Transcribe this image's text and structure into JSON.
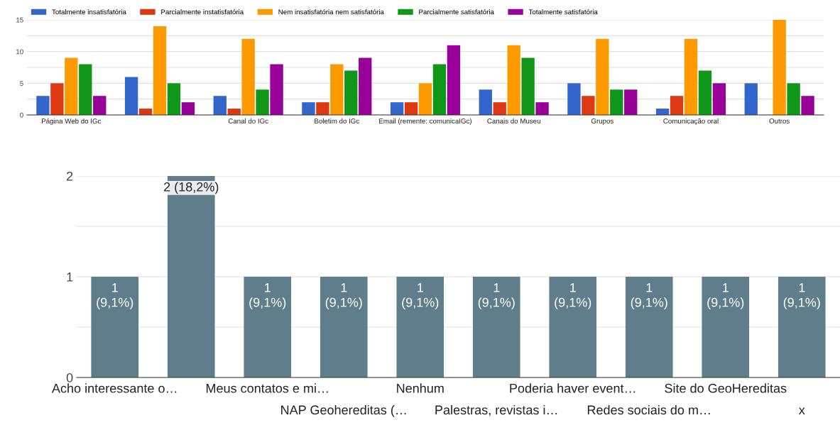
{
  "chart_data": [
    {
      "type": "bar",
      "categories": [
        "Página Web do IGc",
        null,
        "Canal do IGc",
        "Boletim do IGc",
        "Email (remente: comunicaIGc)",
        "Canais do Museu",
        "Grupos",
        "Comunicação oral",
        "Outros"
      ],
      "series": [
        {
          "name": "Totalmente insatisfatória",
          "color": "#3366cc",
          "values": [
            3,
            6,
            3,
            2,
            2,
            4,
            5,
            1,
            5
          ]
        },
        {
          "name": "Parcialmente instatisfatória",
          "color": "#dc3912",
          "values": [
            5,
            1,
            1,
            2,
            2,
            2,
            3,
            3,
            0
          ]
        },
        {
          "name": "Nem insatisfatória nem satisfatória",
          "color": "#ff9900",
          "values": [
            9,
            14,
            12,
            8,
            5,
            11,
            12,
            12,
            15
          ]
        },
        {
          "name": "Parcialmente satisfatória",
          "color": "#109618",
          "values": [
            8,
            5,
            4,
            7,
            8,
            9,
            4,
            7,
            5
          ]
        },
        {
          "name": "Totalmente satisfatória",
          "color": "#990099",
          "values": [
            3,
            2,
            8,
            9,
            11,
            2,
            4,
            5,
            3
          ]
        }
      ],
      "ylim": [
        0,
        15
      ],
      "yticks": [
        0,
        {
          "value": 2.5,
          "label": null
        },
        5,
        {
          "value": 7.5,
          "label": null
        },
        10,
        {
          "value": 12.5,
          "label": null
        },
        15
      ],
      "grid": "y",
      "legend": "top left"
    },
    {
      "type": "bar",
      "categories": [
        "Acho interessante o…",
        null,
        "Meus contatos e mi…",
        "NAP Geohereditas (…",
        "Nenhum",
        "Palestras, revistas i…",
        "Poderia haver event…",
        "Redes sociais do m…",
        "Site do GeoHereditas",
        "x"
      ],
      "values": [
        1,
        2,
        1,
        1,
        1,
        1,
        1,
        1,
        1,
        1
      ],
      "color": "#607d8b",
      "value_labels": [
        "1\n(9,1%)",
        "2 (18,2%)",
        "1\n(9,1%)",
        "1\n(9,1%)",
        "1\n(9,1%)",
        "1\n(9,1%)",
        "1\n(9,1%)",
        "1\n(9,1%)",
        "1\n(9,1%)",
        "1\n(9,1%)"
      ],
      "ylim": [
        0,
        2
      ],
      "yticks": [
        0,
        {
          "value": 0.5,
          "label": null
        },
        1,
        {
          "value": 1.5,
          "label": null
        },
        2
      ],
      "grid": "y",
      "legend": false
    }
  ]
}
